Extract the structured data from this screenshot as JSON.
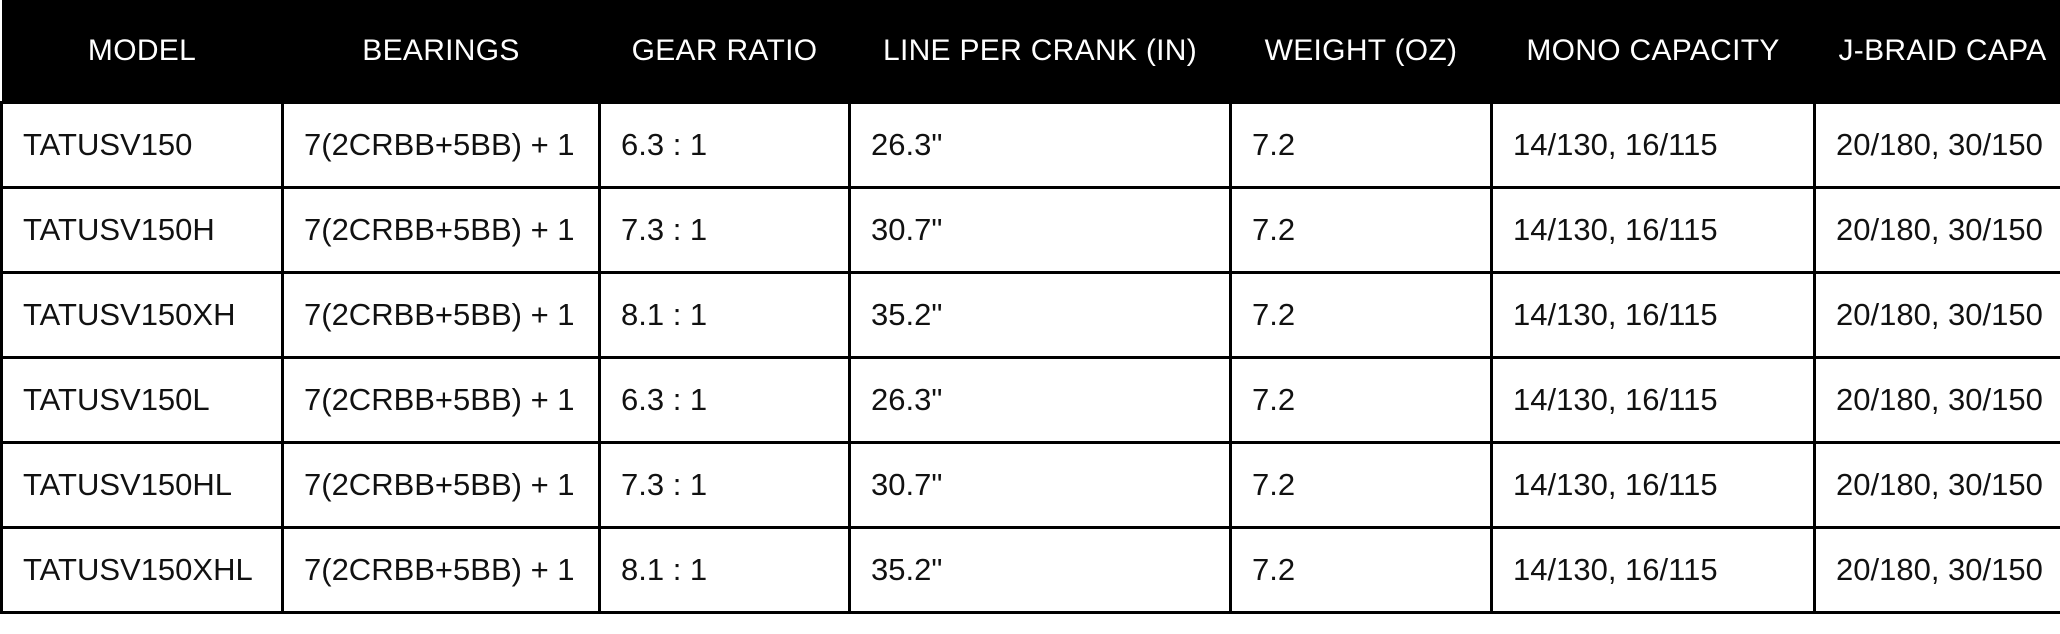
{
  "columns": [
    "MODEL",
    "BEARINGS",
    "GEAR RATIO",
    "LINE PER CRANK (IN)",
    "WEIGHT (OZ)",
    "MONO CAPACITY",
    "J-BRAID CAPA"
  ],
  "rows": [
    [
      "TATUSV150",
      "7(2CRBB+5BB) + 1",
      "6.3 : 1",
      "26.3\"",
      "7.2",
      "14/130, 16/115",
      "20/180, 30/150"
    ],
    [
      "TATUSV150H",
      "7(2CRBB+5BB) + 1",
      "7.3 : 1",
      "30.7\"",
      "7.2",
      "14/130, 16/115",
      "20/180, 30/150"
    ],
    [
      "TATUSV150XH",
      "7(2CRBB+5BB) + 1",
      "8.1 : 1",
      "35.2\"",
      "7.2",
      "14/130, 16/115",
      "20/180, 30/150"
    ],
    [
      "TATUSV150L",
      "7(2CRBB+5BB) + 1",
      "6.3 : 1",
      "26.3\"",
      "7.2",
      "14/130, 16/115",
      "20/180, 30/150"
    ],
    [
      "TATUSV150HL",
      "7(2CRBB+5BB) + 1",
      "7.3 : 1",
      "30.7\"",
      "7.2",
      "14/130, 16/115",
      "20/180, 30/150"
    ],
    [
      "TATUSV150XHL",
      "7(2CRBB+5BB) + 1",
      "8.1 : 1",
      "35.2\"",
      "7.2",
      "14/130, 16/115",
      "20/180, 30/150"
    ]
  ]
}
